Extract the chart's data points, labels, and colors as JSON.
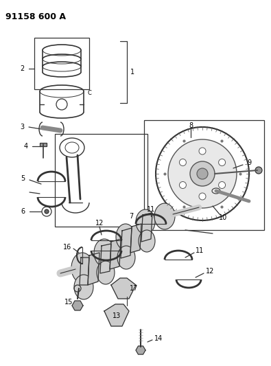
{
  "title": "91158 600 A",
  "bg_color": "#ffffff",
  "lc": "#333333",
  "fig_width": 3.95,
  "fig_height": 5.33,
  "dpi": 100
}
